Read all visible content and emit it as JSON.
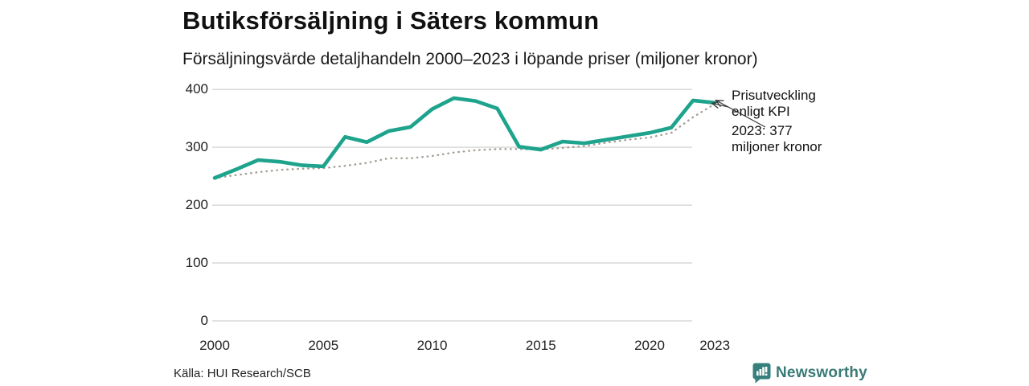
{
  "header": {
    "title": "Butiksförsäljning i Säters kommun",
    "subtitle": "Försäljningsvärde detaljhandeln 2000–2023 i löpande priser (miljoner kronor)"
  },
  "chart_data": {
    "type": "line",
    "title": "Butiksförsäljning i Säters kommun",
    "subtitle": "Försäljningsvärde detaljhandeln 2000–2023 i löpande priser (miljoner kronor)",
    "x": [
      2000,
      2001,
      2002,
      2003,
      2004,
      2005,
      2006,
      2007,
      2008,
      2009,
      2010,
      2011,
      2012,
      2013,
      2014,
      2015,
      2016,
      2017,
      2018,
      2019,
      2020,
      2021,
      2022,
      2023
    ],
    "series": [
      {
        "name": "Försäljningsvärde detaljhandeln, löpande priser",
        "color": "#1ea38c",
        "line_style": "solid",
        "values": [
          247,
          262,
          278,
          275,
          269,
          267,
          318,
          309,
          328,
          335,
          366,
          385,
          380,
          367,
          301,
          296,
          310,
          307,
          313,
          319,
          325,
          334,
          381,
          377
        ]
      },
      {
        "name": "Prisutveckling enligt KPI",
        "color": "#a59d95",
        "line_style": "dotted",
        "values": [
          247,
          252,
          257,
          261,
          263,
          264,
          268,
          273,
          281,
          281,
          285,
          291,
          295,
          297,
          297,
          296,
          299,
          302,
          308,
          313,
          317,
          325,
          352,
          375
        ]
      }
    ],
    "ylim": [
      0,
      400
    ],
    "yticks": [
      0,
      100,
      200,
      300,
      400
    ],
    "xticks": [
      2000,
      2005,
      2010,
      2015,
      2020,
      2023
    ],
    "grid": "horizontal-only",
    "legend": "none",
    "annotations": [
      {
        "text": "Prisutveckling enligt KPI",
        "points_to": "kpi-line-end"
      },
      {
        "text": "2023: 377 miljoner kronor",
        "points_to": "sales-line-end"
      }
    ]
  },
  "annotation": {
    "kpi_line1": "Prisutveckling",
    "kpi_line2": "enligt KPI",
    "value_line1": "2023: 377",
    "value_line2": "miljoner kronor"
  },
  "footer": {
    "source": "Källa: HUI Research/SCB",
    "brand": "Newsworthy"
  },
  "colors": {
    "sales_line": "#1ea38c",
    "kpi_line": "#a59d95",
    "gridline": "#d9d9d9",
    "arrow": "#3c3c3c",
    "brand": "#3a7a77"
  },
  "icons": {
    "brand_logo": "newsworthy-bar-chart-bubble-icon"
  }
}
